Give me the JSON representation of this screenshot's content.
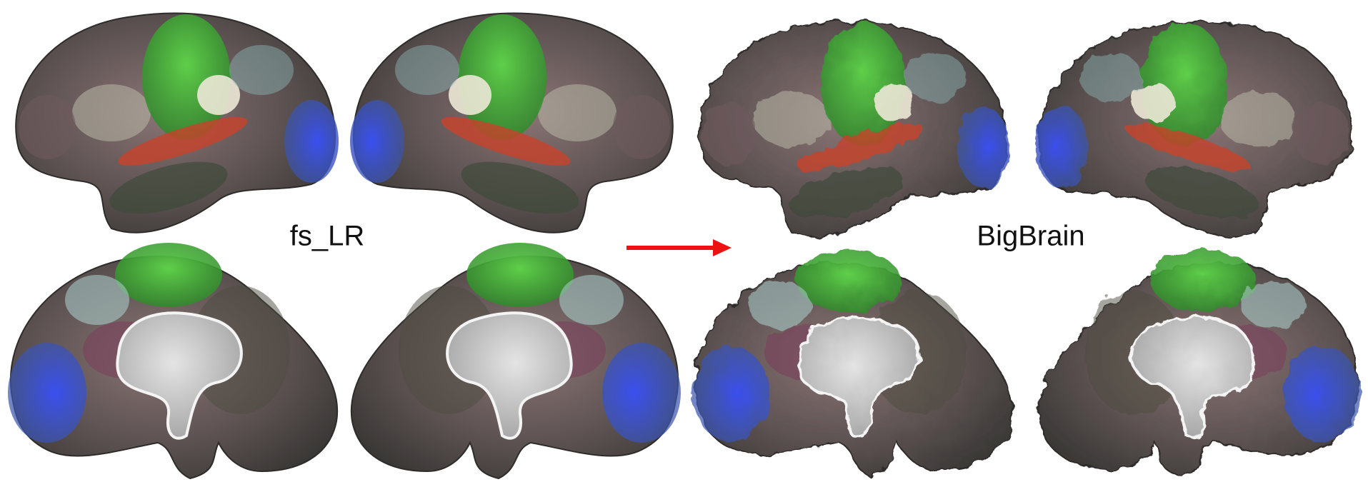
{
  "labels": {
    "source": "fs_LR",
    "target": "BigBrain"
  }
}
